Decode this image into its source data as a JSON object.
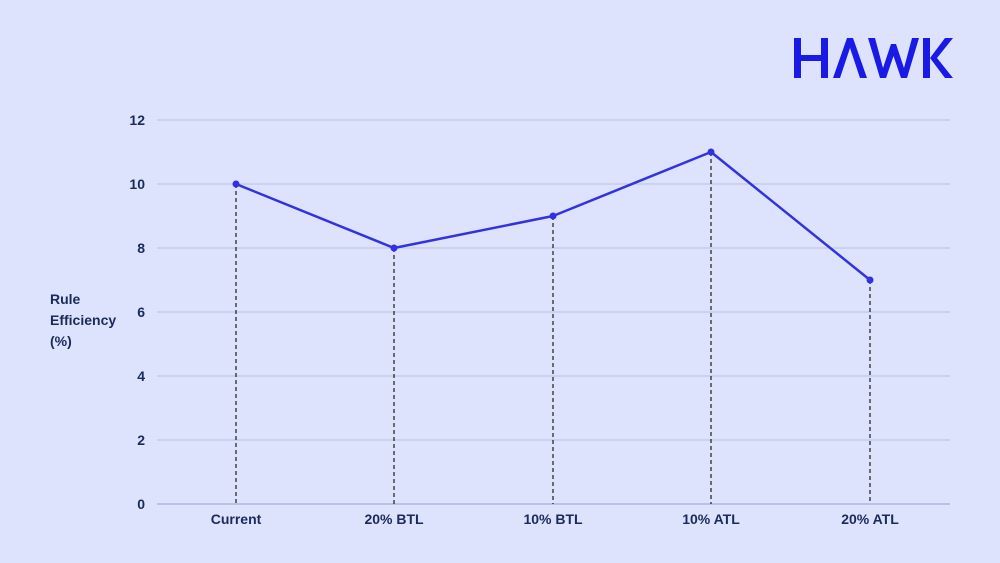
{
  "brand": {
    "logo_text": "HAWK",
    "color": "#1a1ae6"
  },
  "colors": {
    "background": "#dde3fd",
    "line": "#3232e0",
    "grid": "#b9c2e3",
    "axis_text": "#1b2a5c",
    "drop_line": "#1a1a1a"
  },
  "ylabel_lines": [
    "Rule",
    "Efficiency",
    "(%)"
  ],
  "chart_data": {
    "type": "line",
    "title": "",
    "xlabel": "",
    "ylabel": "Rule Efficiency (%)",
    "categories": [
      "Current",
      "20% BTL",
      "10% BTL",
      "10% ATL",
      "20% ATL"
    ],
    "values": [
      10,
      8,
      9,
      11,
      7
    ],
    "series": [
      {
        "name": "Rule Efficiency (%)",
        "values": [
          10,
          8,
          9,
          11,
          7
        ]
      }
    ],
    "ylim": [
      0,
      12
    ],
    "yticks": [
      0,
      2,
      4,
      6,
      8,
      10,
      12
    ],
    "grid": true,
    "legend": null,
    "annotations": "dashed vertical drop lines from each point to x-axis"
  }
}
